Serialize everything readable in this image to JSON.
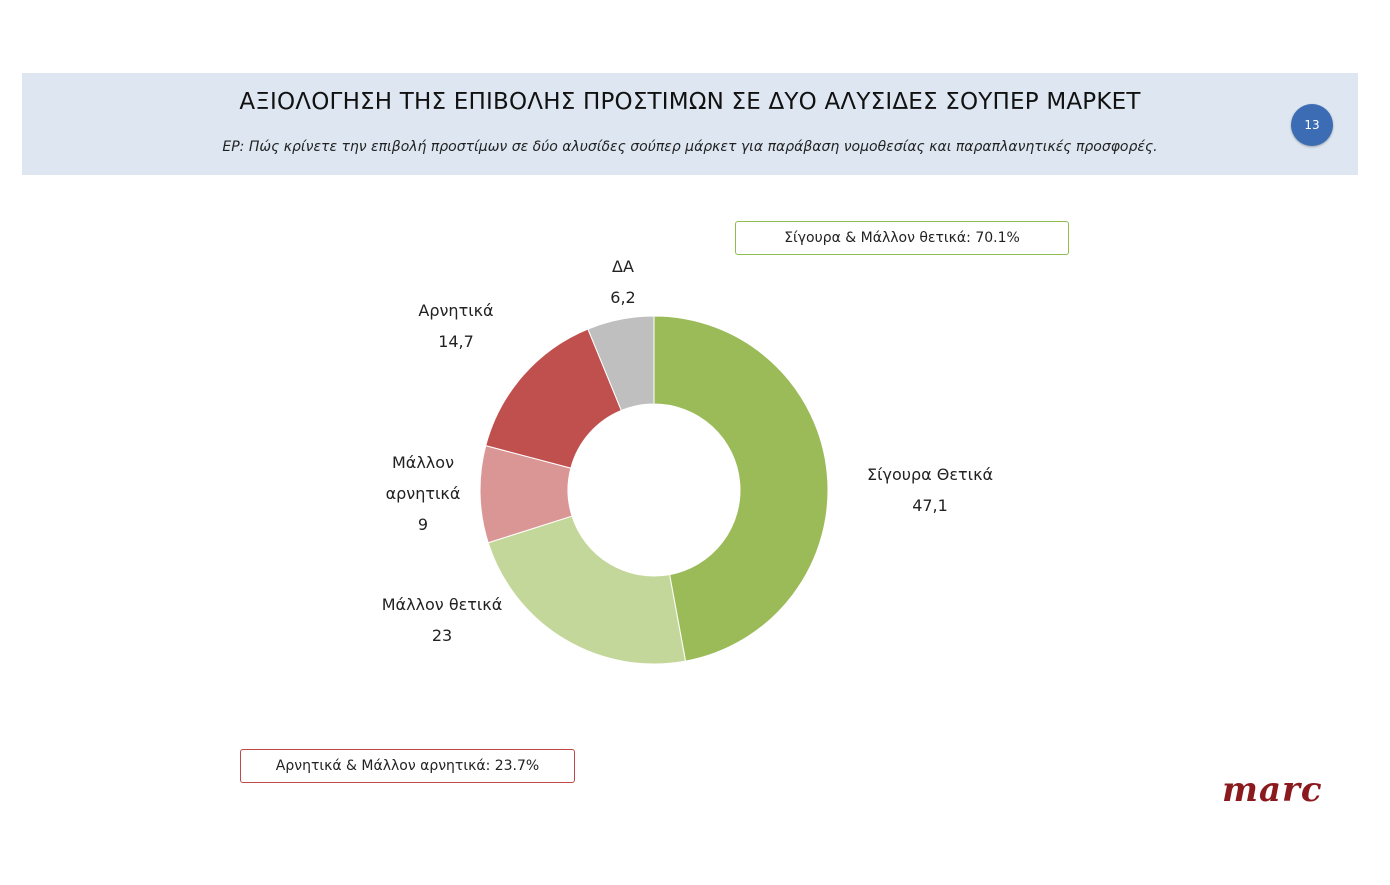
{
  "header": {
    "title": "ΑΞΙΟΛΟΓΗΣΗ ΤΗΣ ΕΠΙΒΟΛΗΣ ΠΡΟΣΤΙΜΩΝ ΣΕ ΔΥΟ ΑΛΥΣΙΔΕΣ ΣΟΥΠΕΡ ΜΑΡΚΕΤ",
    "subtitle": "ΕΡ: Πώς κρίνετε την επιβολή προστίμων σε δύο αλυσίδες σούπερ μάρκετ για παράβαση νομοθεσίας και παραπλανητικές προσφορές.",
    "page_number": "13"
  },
  "summaries": {
    "positive": "Σίγουρα & Μάλλον θετικά: 70.1%",
    "negative": "Αρνητικά & Μάλλον αρνητικά: 23.7%"
  },
  "logo": "marc",
  "chart_data": {
    "type": "pie",
    "donut": true,
    "start_angle_deg": 0,
    "direction": "clockwise",
    "slices": [
      {
        "label_lines": [
          "Σίγουρα Θετικά",
          "47,1"
        ],
        "name": "Σίγουρα Θετικά",
        "value": 47.1,
        "color": "#9bbb59"
      },
      {
        "label_lines": [
          "Μάλλον θετικά",
          "23"
        ],
        "name": "Μάλλον θετικά",
        "value": 23,
        "color": "#c4d79b"
      },
      {
        "label_lines": [
          "Μάλλον",
          "αρνητικά",
          "9"
        ],
        "name": "Μάλλον αρνητικά",
        "value": 9,
        "color": "#da9694"
      },
      {
        "label_lines": [
          "Αρνητικά",
          "14,7"
        ],
        "name": "Αρνητικά",
        "value": 14.7,
        "color": "#c0504d"
      },
      {
        "label_lines": [
          "ΔΑ",
          "6,2"
        ],
        "name": "ΔΑ",
        "value": 6.2,
        "color": "#bfbfbf"
      }
    ]
  }
}
